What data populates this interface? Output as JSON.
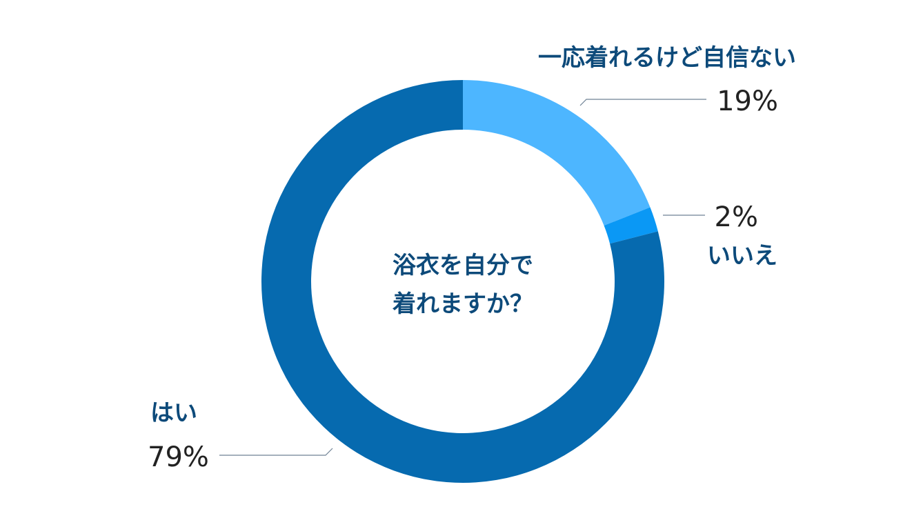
{
  "chart_data": {
    "type": "pie",
    "donut": true,
    "title": "浴衣を自分で着れますか？",
    "title_lines": [
      "浴衣を自分で",
      "着れますか？"
    ],
    "series": [
      {
        "name": "一応着れるけど自信ない",
        "value": 19,
        "value_label": "19%",
        "color": "#4DB6FF"
      },
      {
        "name": "いいえ",
        "value": 2,
        "value_label": "2%",
        "color": "#0A98F5"
      },
      {
        "name": "はい",
        "value": 79,
        "value_label": "79%",
        "color": "#066AAF"
      }
    ],
    "colors": {
      "category_label": "#0D4A7A",
      "value_label": "#222222",
      "leader_line": "#6E8194",
      "background": "#FFFFFF"
    }
  }
}
